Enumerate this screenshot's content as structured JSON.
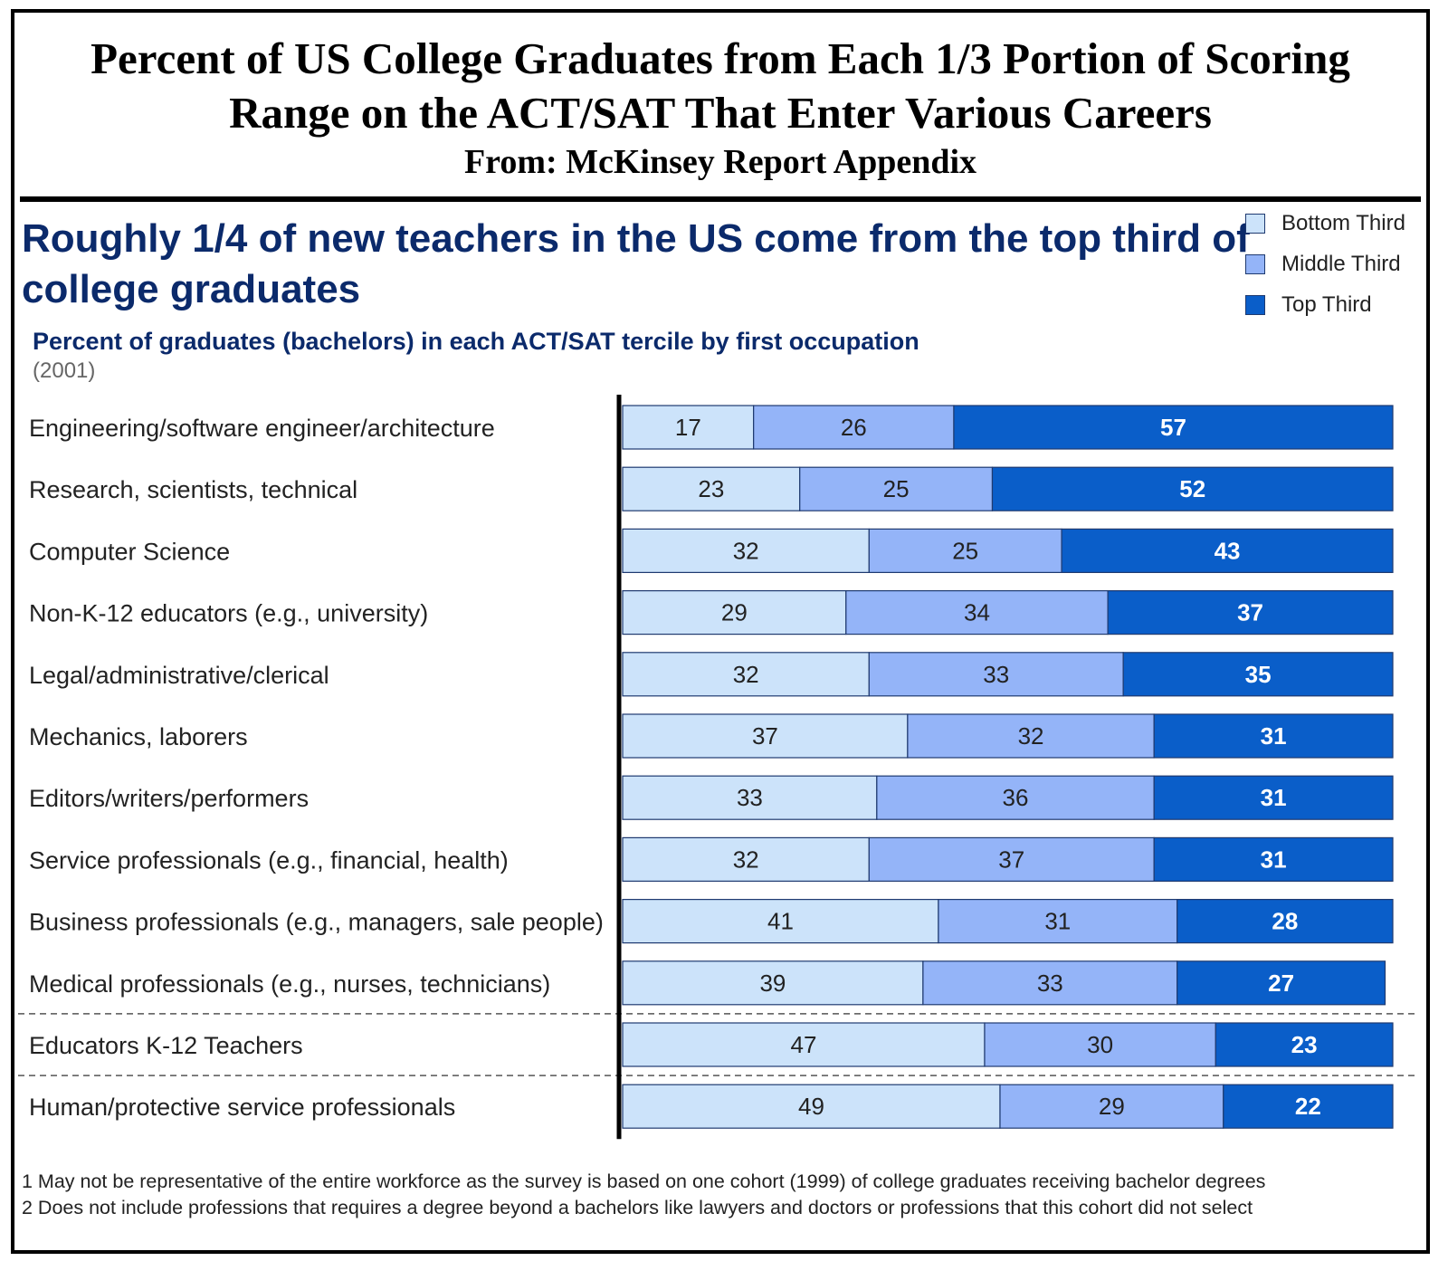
{
  "header": {
    "title_line1": "Percent of US College Graduates from Each 1/3 Portion of Scoring",
    "title_line2": "Range on the ACT/SAT That Enter Various Careers",
    "source": "From: McKinsey Report Appendix"
  },
  "headline": "Roughly 1/4 of new teachers in the US come from the top third of college graduates",
  "footnotes": [
    "1 May not be representative of the entire workforce as the survey is based on one cohort (1999) of college graduates receiving bachelor degrees",
    "2 Does not include professions that requires a degree beyond a bachelors like lawyers and doctors or professions that this cohort did not select"
  ],
  "colors": {
    "bottom": "#cce3fa",
    "middle": "#94b4f8",
    "top": "#0a5ec9",
    "outline": "#1f3a70",
    "axis": "#000000",
    "headline": "#0b2a6b"
  },
  "chart_data": {
    "type": "bar",
    "orientation": "horizontal",
    "stacked": true,
    "title": "Percent of graduates (bachelors) in each ACT/SAT tercile by first occupation",
    "subtitle": "(2001)",
    "categories": [
      "Engineering/software engineer/architecture",
      "Research, scientists, technical",
      "Computer Science",
      "Non-K-12 educators (e.g., university)",
      "Legal/administrative/clerical",
      "Mechanics, laborers",
      "Editors/writers/performers",
      "Service professionals (e.g., financial, health)",
      "Business professionals (e.g., managers, sale people)",
      "Medical professionals (e.g., nurses, technicians)",
      "Educators K-12 Teachers",
      "Human/protective service professionals"
    ],
    "highlighted_category": "Educators K-12 Teachers",
    "series": [
      {
        "name": "Bottom Third",
        "values": [
          17,
          23,
          32,
          29,
          32,
          37,
          33,
          32,
          41,
          39,
          47,
          49
        ]
      },
      {
        "name": "Middle Third",
        "values": [
          26,
          25,
          25,
          34,
          33,
          32,
          36,
          37,
          31,
          33,
          30,
          29
        ]
      },
      {
        "name": "Top Third",
        "values": [
          57,
          52,
          43,
          37,
          35,
          31,
          31,
          31,
          28,
          27,
          23,
          22
        ]
      }
    ],
    "xlim": [
      0,
      100
    ],
    "legend_position": "top-right"
  }
}
